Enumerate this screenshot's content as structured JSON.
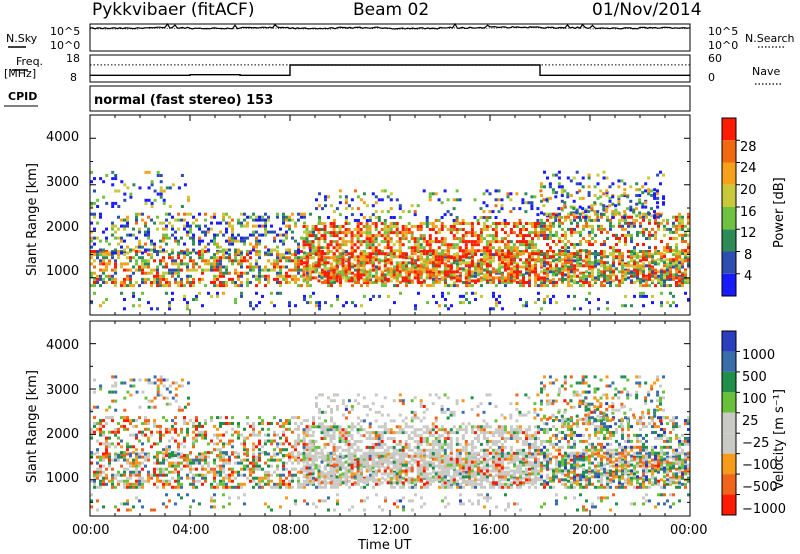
{
  "header": {
    "station": "Pykkvibaer (fitACF)",
    "beam": "Beam 02",
    "date": "01/Nov/2014"
  },
  "labels": {
    "nsky": "N.Sky",
    "nsearch": "N.Search",
    "freq": "Freq.",
    "mhz": "[MHz]",
    "nave": "Nave",
    "cpid": "CPID",
    "cpid_text": "normal (fast stereo) 153",
    "xlabel": "Time UT",
    "ylabel_power": "Slant Range [km]",
    "ylabel_vel": "Slant Range [km]",
    "cbar_power": "Power [dB]",
    "cbar_vel": "Velocity [m s⁻¹]"
  },
  "noise_ticks": [
    "10^5",
    "10^0",
    "10^5",
    "10^0"
  ],
  "freq_ticks": [
    "18",
    "8",
    "60",
    "0"
  ],
  "xticks": [
    "00:00",
    "04:00",
    "08:00",
    "12:00",
    "16:00",
    "20:00",
    "00:00"
  ],
  "yticks": [
    "1000",
    "2000",
    "3000",
    "4000"
  ],
  "power_cbar_ticks": [
    "4",
    "8",
    "12",
    "16",
    "20",
    "24",
    "28"
  ],
  "vel_cbar_ticks": [
    "1000",
    "500",
    "100",
    "25",
    "−25",
    "−100",
    "−500",
    "−1000"
  ],
  "colors": {
    "power": [
      "#1a1aff",
      "#2d4db0",
      "#2e8b57",
      "#6fc23f",
      "#c8c83a",
      "#f5a21a",
      "#f26a10",
      "#ff1a00"
    ],
    "velocity": [
      "#2a3fbf",
      "#3a6ea8",
      "#1f8f4a",
      "#69c03a",
      "#c9c9c5",
      "#c9c9c5",
      "#f59a1a",
      "#f0641c",
      "#ff1a00"
    ]
  },
  "chart_data": [
    {
      "type": "line",
      "series": [
        {
          "name": "N.Sky",
          "values": [
            4.2,
            4.3,
            4.2,
            4.3,
            4.2,
            4.3,
            4.2,
            4.3,
            4.4,
            4.3,
            4.2,
            4.3
          ]
        },
        {
          "name": "N.Search",
          "values": [
            4.1,
            4.2,
            4.1,
            4.2,
            4.1,
            4.2,
            4.1,
            4.2,
            4.3,
            4.2,
            4.1,
            4.2
          ]
        }
      ],
      "x": [
        0,
        2,
        4,
        6,
        8,
        10,
        12,
        14,
        16,
        18,
        20,
        22
      ],
      "xlim": [
        0,
        24
      ],
      "ylim": [
        0,
        5
      ]
    },
    {
      "type": "line",
      "series": [
        {
          "name": "Freq.",
          "values": [
            10.5,
            10.5,
            10.7,
            10.5,
            14.3,
            14.3,
            14.3,
            14.3,
            14.3,
            10.5,
            10.5,
            10.5
          ]
        },
        {
          "name": "Nave",
          "values": [
            38,
            38,
            38,
            38,
            38,
            38,
            38,
            38,
            38,
            38,
            38,
            38
          ]
        }
      ],
      "x": [
        0,
        2,
        4,
        6,
        8,
        10,
        12,
        14,
        16,
        18,
        20,
        22
      ],
      "xlim": [
        0,
        24
      ],
      "ylim": [
        8,
        18
      ],
      "y2lim": [
        0,
        60
      ]
    },
    {
      "type": "heatmap",
      "xlabel": "Time UT",
      "ylabel": "Slant Range [km]",
      "xlim": [
        0,
        24
      ],
      "ylim": [
        200,
        4500
      ],
      "colorbar": "Power [dB]",
      "clim": [
        0,
        30
      ]
    },
    {
      "type": "heatmap",
      "xlabel": "Time UT",
      "ylabel": "Slant Range [km]",
      "xlim": [
        0,
        24
      ],
      "ylim": [
        200,
        4500
      ],
      "colorbar": "Velocity [m s⁻¹]",
      "clim": [
        -1000,
        1000
      ]
    }
  ]
}
